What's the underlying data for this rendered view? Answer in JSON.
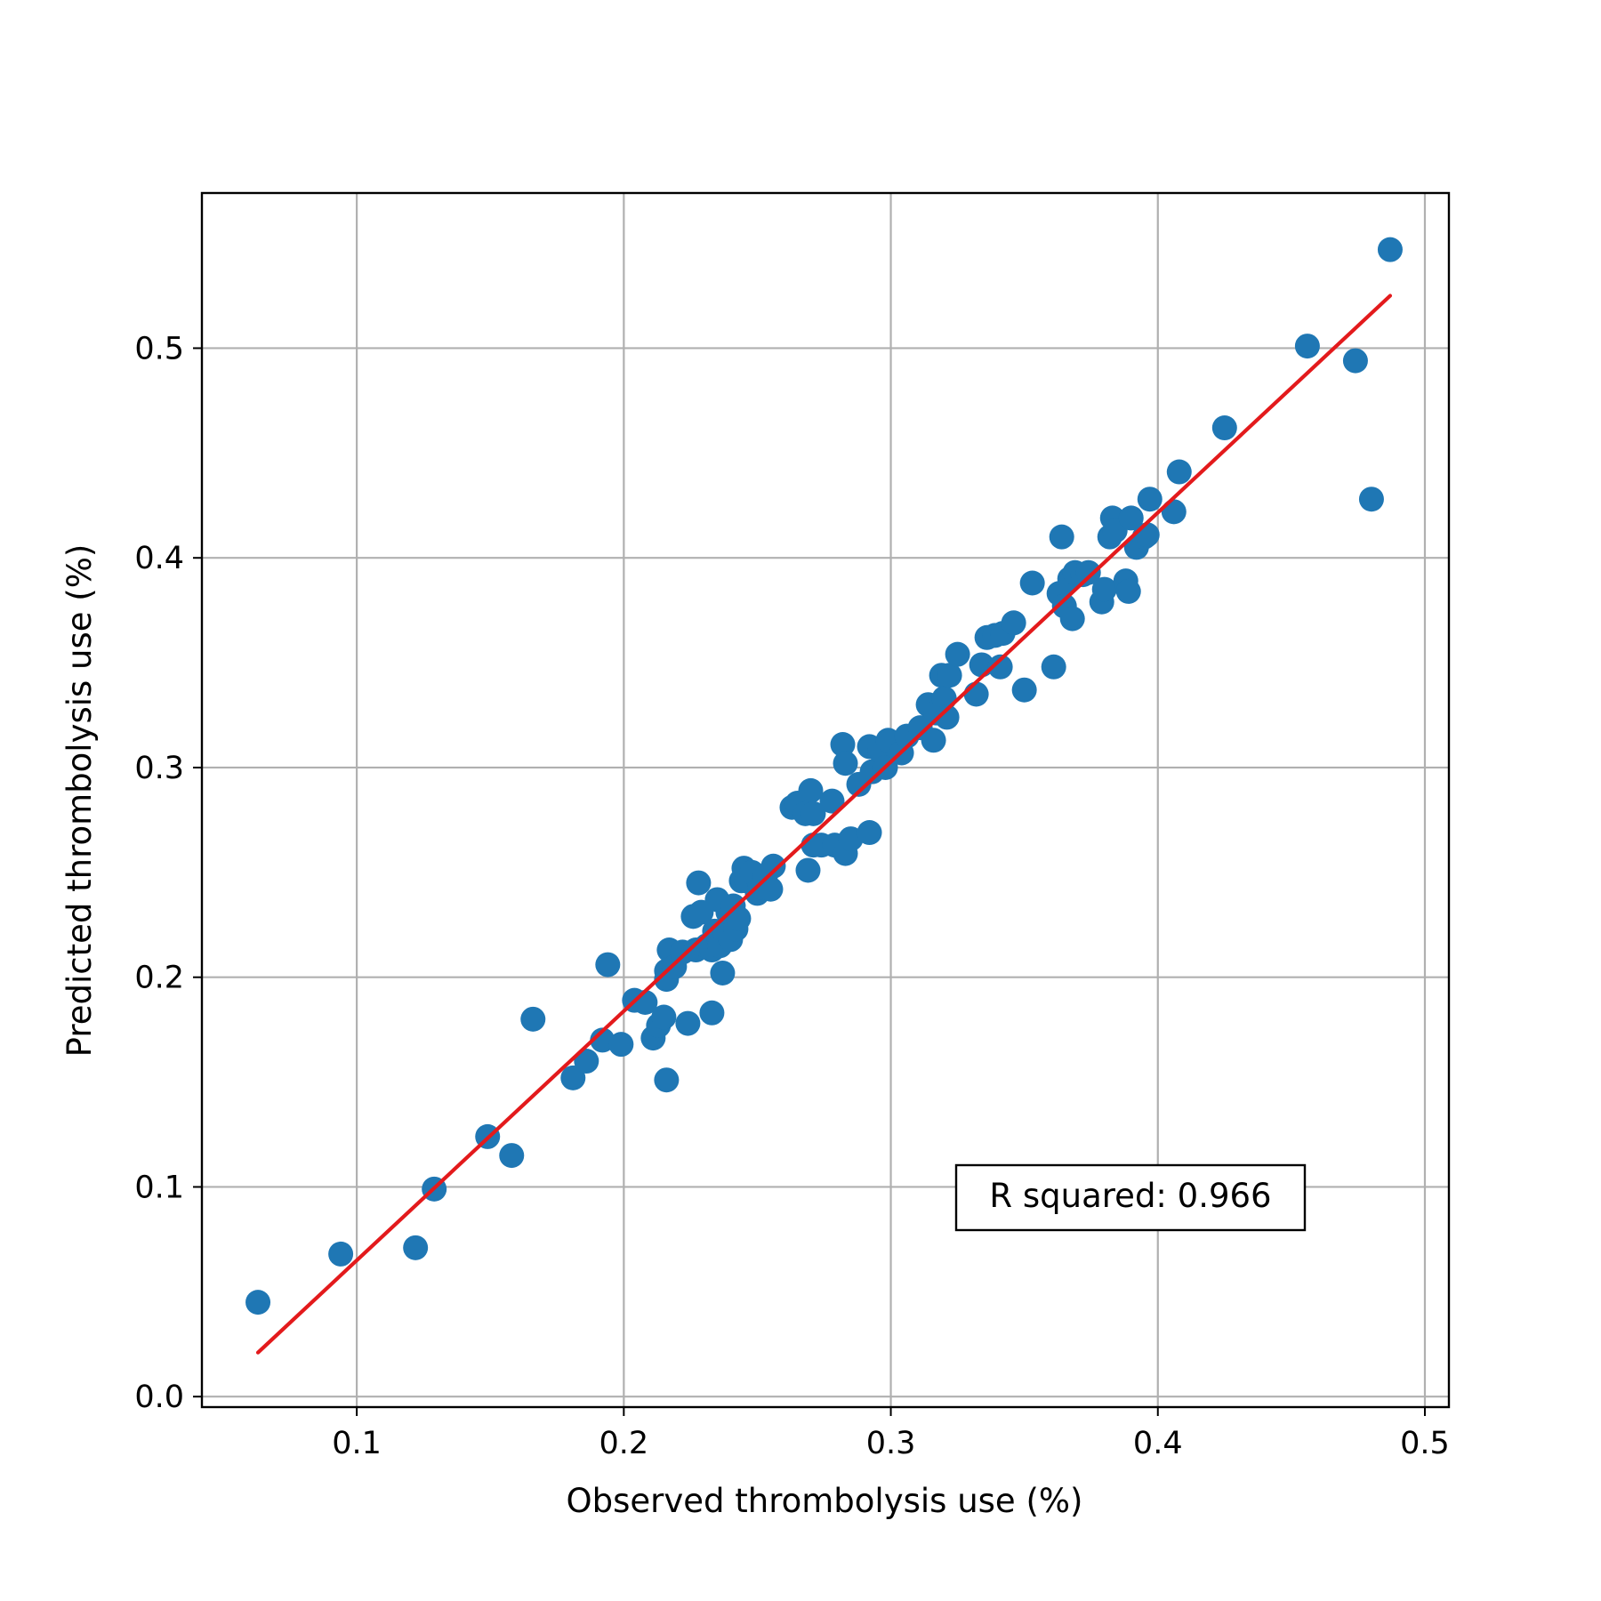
{
  "chart_data": {
    "type": "scatter",
    "title": "",
    "xlabel": "Observed thrombolysis use (%)",
    "ylabel": "Predicted thrombolysis use (%)",
    "xlim": [
      0.042,
      0.509
    ],
    "ylim": [
      -0.005,
      0.574
    ],
    "xticks": [
      0.1,
      0.2,
      0.3,
      0.4,
      0.5
    ],
    "yticks": [
      0.0,
      0.1,
      0.2,
      0.3,
      0.4,
      0.5
    ],
    "xtick_labels": [
      "0.1",
      "0.2",
      "0.3",
      "0.4",
      "0.5"
    ],
    "ytick_labels": [
      "0.0",
      "0.1",
      "0.2",
      "0.3",
      "0.4",
      "0.5"
    ],
    "grid": true,
    "colors": {
      "points": "#1f77b4",
      "fit_line": "#e31a1c",
      "grid": "#b0b0b0"
    },
    "annotation": {
      "text": "R squared: 0.966",
      "position": "bottom-right"
    },
    "fit_line": {
      "x": [
        0.063,
        0.487
      ],
      "y": [
        0.021,
        0.525
      ]
    },
    "points": {
      "x": [
        0.063,
        0.094,
        0.122,
        0.129,
        0.149,
        0.158,
        0.166,
        0.181,
        0.186,
        0.192,
        0.194,
        0.199,
        0.204,
        0.208,
        0.211,
        0.213,
        0.215,
        0.216,
        0.216,
        0.217,
        0.216,
        0.219,
        0.222,
        0.224,
        0.226,
        0.228,
        0.227,
        0.229,
        0.231,
        0.233,
        0.233,
        0.234,
        0.235,
        0.236,
        0.237,
        0.238,
        0.239,
        0.24,
        0.241,
        0.242,
        0.243,
        0.244,
        0.245,
        0.246,
        0.248,
        0.25,
        0.251,
        0.253,
        0.255,
        0.256,
        0.263,
        0.265,
        0.268,
        0.269,
        0.27,
        0.271,
        0.271,
        0.274,
        0.278,
        0.279,
        0.282,
        0.283,
        0.283,
        0.285,
        0.288,
        0.292,
        0.292,
        0.293,
        0.296,
        0.298,
        0.299,
        0.304,
        0.306,
        0.311,
        0.314,
        0.316,
        0.317,
        0.319,
        0.32,
        0.321,
        0.322,
        0.325,
        0.332,
        0.334,
        0.336,
        0.339,
        0.341,
        0.342,
        0.346,
        0.35,
        0.353,
        0.361,
        0.363,
        0.364,
        0.365,
        0.367,
        0.368,
        0.369,
        0.372,
        0.374,
        0.379,
        0.38,
        0.382,
        0.383,
        0.384,
        0.388,
        0.389,
        0.39,
        0.392,
        0.395,
        0.397,
        0.396,
        0.406,
        0.408,
        0.425,
        0.456,
        0.474,
        0.48,
        0.487
      ],
      "y": [
        0.045,
        0.068,
        0.071,
        0.099,
        0.124,
        0.115,
        0.18,
        0.152,
        0.16,
        0.17,
        0.206,
        0.168,
        0.189,
        0.188,
        0.171,
        0.177,
        0.181,
        0.151,
        0.203,
        0.213,
        0.199,
        0.205,
        0.212,
        0.178,
        0.229,
        0.245,
        0.213,
        0.231,
        0.215,
        0.183,
        0.213,
        0.222,
        0.237,
        0.215,
        0.202,
        0.221,
        0.231,
        0.218,
        0.234,
        0.223,
        0.228,
        0.246,
        0.252,
        0.246,
        0.25,
        0.24,
        0.243,
        0.248,
        0.242,
        0.253,
        0.281,
        0.283,
        0.278,
        0.251,
        0.289,
        0.263,
        0.278,
        0.263,
        0.284,
        0.263,
        0.311,
        0.302,
        0.259,
        0.266,
        0.292,
        0.269,
        0.31,
        0.298,
        0.308,
        0.3,
        0.313,
        0.307,
        0.315,
        0.319,
        0.33,
        0.313,
        0.326,
        0.344,
        0.333,
        0.324,
        0.344,
        0.354,
        0.335,
        0.349,
        0.362,
        0.363,
        0.348,
        0.364,
        0.369,
        0.337,
        0.388,
        0.348,
        0.383,
        0.41,
        0.377,
        0.39,
        0.371,
        0.393,
        0.392,
        0.393,
        0.379,
        0.385,
        0.41,
        0.419,
        0.413,
        0.389,
        0.384,
        0.419,
        0.405,
        0.41,
        0.428,
        0.411,
        0.422,
        0.441,
        0.462,
        0.501,
        0.494,
        0.428,
        0.547
      ]
    }
  }
}
